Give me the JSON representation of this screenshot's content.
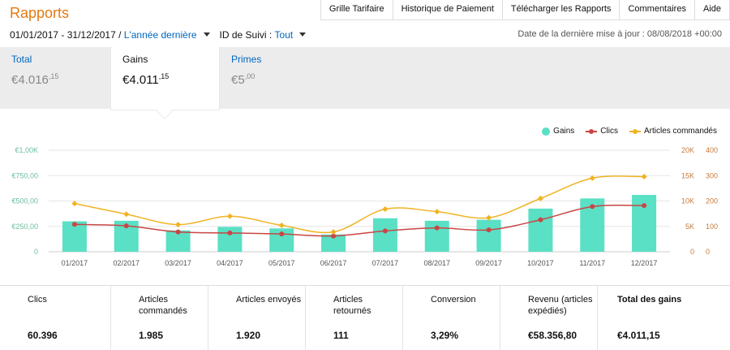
{
  "header": {
    "title": "Rapports",
    "nav": [
      "Grille Tarifaire",
      "Historique de Paiement",
      "Télécharger les Rapports",
      "Commentaires",
      "Aide"
    ]
  },
  "filters": {
    "date_range": "01/01/2017 - 31/12/2017 /",
    "period_link": "L'année dernière",
    "tracking_label": "ID de Suivi :",
    "tracking_value": "Tout",
    "last_update": "Date de la dernière mise à jour : 08/08/2018 +00:00"
  },
  "tiles": [
    {
      "label": "Total",
      "main": "€4.016",
      "cents": ",15"
    },
    {
      "label": "Gains",
      "main": "€4.011",
      "cents": ",15"
    },
    {
      "label": "Primes",
      "main": "€5",
      "cents": ",00"
    }
  ],
  "legend": [
    "Gains",
    "Clics",
    "Articles commandés"
  ],
  "colors": {
    "gains": "#5ae0c4",
    "clics": "#c94545",
    "articles": "#f0b323",
    "left_axis": "#6bbf9c",
    "right_axis": "#c77a3b",
    "accent": "#e47911"
  },
  "chart_data": {
    "type": "bar",
    "categories": [
      "01/2017",
      "02/2017",
      "03/2017",
      "04/2017",
      "05/2017",
      "06/2017",
      "07/2017",
      "08/2017",
      "09/2017",
      "10/2017",
      "11/2017",
      "12/2017"
    ],
    "y_left_ticks": [
      "0",
      "€250,00",
      "€500,00",
      "€750,00",
      "€1,00K"
    ],
    "y_left_range": [
      0,
      1000
    ],
    "y_right1_ticks": [
      "0",
      "5K",
      "10K",
      "15K",
      "20K"
    ],
    "y_right1_range": [
      0,
      20000
    ],
    "y_right2_ticks": [
      "0",
      "100",
      "200",
      "300",
      "400"
    ],
    "y_right2_range": [
      0,
      400
    ],
    "series": [
      {
        "name": "Gains",
        "type": "bar",
        "axis": "left",
        "values": [
          300,
          305,
          210,
          245,
          230,
          170,
          330,
          305,
          315,
          425,
          525,
          560
        ]
      },
      {
        "name": "Clics",
        "type": "line",
        "axis": "right1",
        "values": [
          5400,
          5100,
          3900,
          3700,
          3500,
          3100,
          4100,
          4700,
          4300,
          6300,
          8900,
          9100
        ]
      },
      {
        "name": "Articles commandés",
        "type": "line",
        "axis": "right2",
        "values": [
          190,
          148,
          107,
          140,
          104,
          78,
          168,
          158,
          134,
          210,
          290,
          296
        ]
      }
    ],
    "grid": true
  },
  "stats": [
    {
      "label": "Clics",
      "value": "60.396"
    },
    {
      "label": "Articles commandés",
      "value": "1.985"
    },
    {
      "label": "Articles envoyés",
      "value": "1.920"
    },
    {
      "label": "Articles retournés",
      "value": "111"
    },
    {
      "label": "Conversion",
      "value": "3,29%"
    },
    {
      "label": "Revenu (articles expédiés)",
      "value": "€58.356,80"
    },
    {
      "label": "Total des gains",
      "value": "€4.011,15"
    }
  ]
}
